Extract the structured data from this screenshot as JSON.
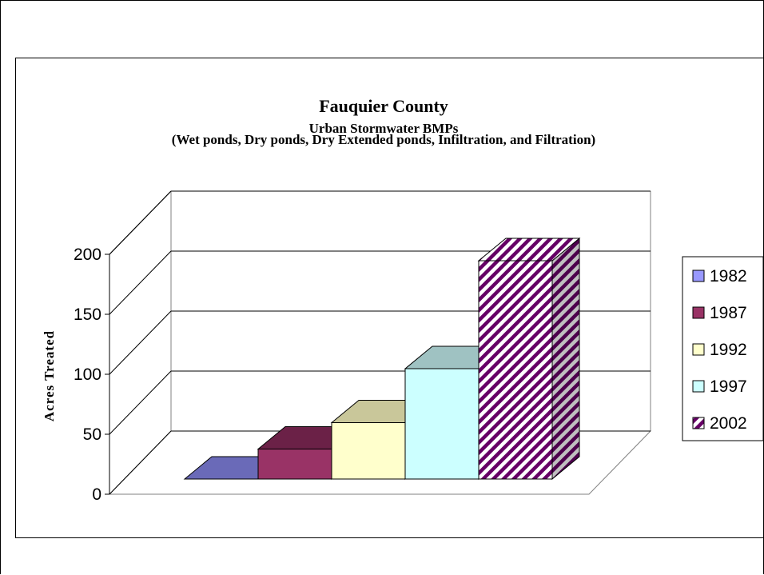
{
  "chart_data": {
    "type": "bar",
    "title": "Fauquier County",
    "subtitle": "Urban Stormwater BMPs",
    "subtitle2": "(Wet ponds, Dry ponds, Dry Extended ponds, Infiltration, and Filtration)",
    "xlabel": "",
    "ylabel": "Acres Treated",
    "ylim": [
      0,
      200
    ],
    "yticks": [
      "0",
      "50",
      "100",
      "150",
      "200"
    ],
    "grid": true,
    "legend_position": "right",
    "series": [
      {
        "name": "1982",
        "value": 0,
        "color": "#9999ff",
        "top": "#6a6ab8",
        "side": "#5a5aa0",
        "pattern": false
      },
      {
        "name": "1987",
        "value": 25,
        "color": "#993366",
        "top": "#6b2147",
        "side": "#5a1a3c",
        "pattern": false
      },
      {
        "name": "1992",
        "value": 47,
        "color": "#ffffcc",
        "top": "#c9c79a",
        "side": "#b8b68a",
        "pattern": false
      },
      {
        "name": "1997",
        "value": 92,
        "color": "#ccffff",
        "top": "#9fc2c2",
        "side": "#8cb0b0",
        "pattern": false
      },
      {
        "name": "2002",
        "value": 182,
        "color": "#660066",
        "top": "#660066",
        "side": "#660066",
        "pattern": true
      }
    ]
  }
}
